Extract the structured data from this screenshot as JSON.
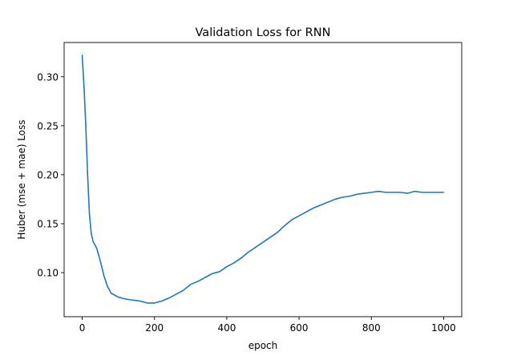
{
  "chart_data": {
    "type": "line",
    "title": "Validation Loss for RNN",
    "xlabel": "epoch",
    "ylabel": "Huber (mse + mae) Loss",
    "xlim": [
      -50,
      1050
    ],
    "ylim": [
      0.055,
      0.335
    ],
    "xticks": [
      0,
      200,
      400,
      600,
      800,
      1000
    ],
    "xtick_labels": [
      "0",
      "200",
      "400",
      "600",
      "800",
      "1000"
    ],
    "yticks": [
      0.1,
      0.15,
      0.2,
      0.25,
      0.3
    ],
    "ytick_labels": [
      "0.10",
      "0.15",
      "0.20",
      "0.25",
      "0.30"
    ],
    "grid": false,
    "series": [
      {
        "color": "#1f77b4",
        "x": [
          0,
          5,
          10,
          15,
          20,
          25,
          30,
          40,
          50,
          60,
          70,
          80,
          90,
          100,
          120,
          140,
          160,
          180,
          200,
          220,
          240,
          260,
          280,
          300,
          320,
          340,
          360,
          380,
          400,
          420,
          440,
          460,
          480,
          500,
          520,
          540,
          560,
          580,
          600,
          620,
          640,
          660,
          680,
          700,
          720,
          740,
          760,
          780,
          800,
          820,
          840,
          860,
          880,
          900,
          920,
          940,
          960,
          980,
          1000
        ],
        "y": [
          0.322,
          0.29,
          0.25,
          0.2,
          0.16,
          0.14,
          0.132,
          0.125,
          0.112,
          0.097,
          0.086,
          0.079,
          0.077,
          0.075,
          0.073,
          0.072,
          0.071,
          0.069,
          0.069,
          0.071,
          0.074,
          0.078,
          0.082,
          0.088,
          0.091,
          0.095,
          0.099,
          0.101,
          0.106,
          0.11,
          0.115,
          0.121,
          0.126,
          0.131,
          0.136,
          0.141,
          0.148,
          0.154,
          0.158,
          0.162,
          0.166,
          0.169,
          0.172,
          0.175,
          0.177,
          0.178,
          0.18,
          0.181,
          0.182,
          0.183,
          0.182,
          0.182,
          0.182,
          0.181,
          0.183,
          0.182,
          0.182,
          0.182,
          0.182
        ]
      }
    ]
  }
}
